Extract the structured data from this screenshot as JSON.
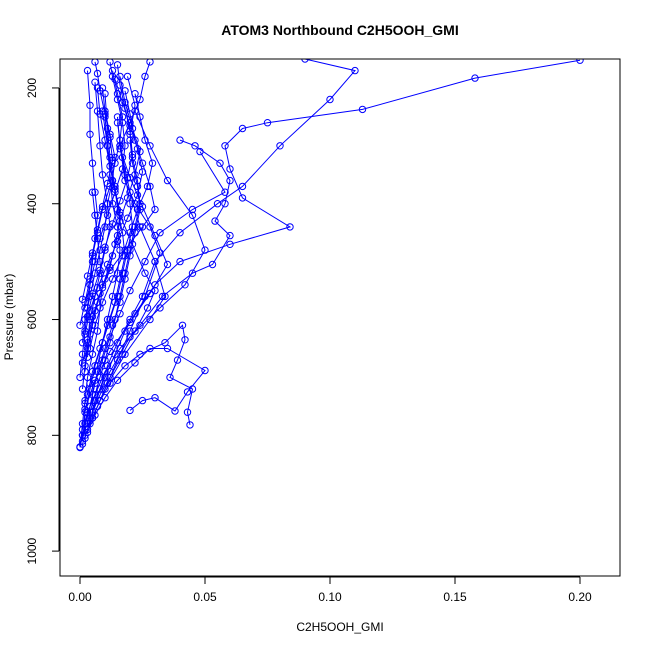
{
  "chart_data": {
    "type": "line",
    "title": "ATOM3 Northbound C2H5OOH_GMI",
    "xlabel": "C2H5OOH_GMI",
    "ylabel": "Pressure (mbar)",
    "xlim": [
      -0.008,
      0.216
    ],
    "ylim": [
      1043,
      150
    ],
    "y_reversed": true,
    "grid": false,
    "color": "#0000ff",
    "x_ticks": [
      0.0,
      0.05,
      0.1,
      0.15,
      0.2
    ],
    "x_tick_labels": [
      "0.00",
      "0.05",
      "0.10",
      "0.15",
      "0.20"
    ],
    "y_ticks": [
      200,
      400,
      600,
      800,
      1000
    ],
    "y_tick_labels": [
      "200",
      "400",
      "600",
      "800",
      "1000"
    ],
    "series": [
      {
        "x": [
          0.0,
          0.001,
          0.003,
          0.004,
          0.006,
          0.008,
          0.01,
          0.012,
          0.014,
          0.016,
          0.018,
          0.02,
          0.022,
          0.024,
          0.023,
          0.021,
          0.02,
          0.022,
          0.019
        ],
        "y": [
          821,
          800,
          780,
          760,
          730,
          700,
          670,
          640,
          600,
          560,
          520,
          480,
          440,
          400,
          360,
          320,
          280,
          230,
          180
        ]
      },
      {
        "x": [
          0.001,
          0.003,
          0.005,
          0.008,
          0.011,
          0.015,
          0.02,
          0.025,
          0.03,
          0.04,
          0.055,
          0.065,
          0.08,
          0.1,
          0.11,
          0.09
        ],
        "y": [
          815,
          790,
          760,
          720,
          680,
          640,
          600,
          560,
          500,
          450,
          400,
          370,
          300,
          220,
          170,
          150
        ]
      },
      {
        "x": [
          0.001,
          0.002,
          0.004,
          0.006,
          0.009,
          0.012,
          0.016,
          0.02,
          0.026,
          0.032,
          0.045,
          0.058,
          0.048
        ],
        "y": [
          810,
          780,
          750,
          710,
          670,
          630,
          590,
          550,
          500,
          450,
          410,
          380,
          310
        ]
      },
      {
        "x": [
          0.002,
          0.004,
          0.006,
          0.01,
          0.014,
          0.018,
          0.022,
          0.03,
          0.04,
          0.06,
          0.084,
          0.065,
          0.06,
          0.058,
          0.065,
          0.075,
          0.113,
          0.158,
          0.2
        ],
        "y": [
          805,
          775,
          740,
          700,
          660,
          620,
          590,
          540,
          500,
          470,
          440,
          390,
          340,
          300,
          270,
          260,
          237,
          183,
          152
        ]
      },
      {
        "x": [
          0.002,
          0.005,
          0.008,
          0.012,
          0.018,
          0.024,
          0.034,
          0.041,
          0.042,
          0.039,
          0.036,
          0.045,
          0.043,
          0.044
        ],
        "y": [
          800,
          770,
          740,
          710,
          680,
          660,
          640,
          610,
          635,
          670,
          700,
          720,
          760,
          782
        ]
      },
      {
        "x": [
          0.003,
          0.006,
          0.01,
          0.015,
          0.022,
          0.028,
          0.035,
          0.05,
          0.043,
          0.038,
          0.03,
          0.025,
          0.02
        ],
        "y": [
          795,
          765,
          735,
          705,
          675,
          650,
          650,
          688,
          725,
          758,
          735,
          740,
          757
        ]
      },
      {
        "x": [
          0.001,
          0.003,
          0.006,
          0.01,
          0.016,
          0.024,
          0.033,
          0.045,
          0.053,
          0.06,
          0.054,
          0.058,
          0.06,
          0.056,
          0.046,
          0.04
        ],
        "y": [
          790,
          760,
          730,
          690,
          650,
          610,
          560,
          520,
          505,
          455,
          430,
          400,
          360,
          330,
          300,
          290
        ]
      },
      {
        "x": [
          0.004,
          0.007,
          0.011,
          0.015,
          0.02,
          0.026,
          0.032,
          0.028,
          0.022,
          0.018,
          0.016,
          0.02,
          0.024,
          0.026,
          0.028
        ],
        "y": [
          780,
          750,
          710,
          670,
          620,
          560,
          485,
          440,
          400,
          360,
          300,
          260,
          220,
          180,
          155
        ]
      },
      {
        "x": [
          0.005,
          0.008,
          0.012,
          0.017,
          0.022,
          0.027,
          0.03,
          0.026,
          0.021,
          0.016,
          0.013,
          0.011,
          0.009
        ],
        "y": [
          760,
          730,
          700,
          660,
          620,
          580,
          550,
          520,
          470,
          420,
          360,
          300,
          240
        ]
      },
      {
        "x": [
          0.002,
          0.004,
          0.007,
          0.009,
          0.012,
          0.015,
          0.017,
          0.019,
          0.021,
          0.02,
          0.018,
          0.016,
          0.015
        ],
        "y": [
          745,
          710,
          680,
          640,
          600,
          560,
          520,
          480,
          440,
          400,
          350,
          300,
          250
        ]
      },
      {
        "x": [
          0.003,
          0.005,
          0.008,
          0.011,
          0.014,
          0.016,
          0.018,
          0.017,
          0.015,
          0.014,
          0.012,
          0.011,
          0.01
        ],
        "y": [
          730,
          690,
          650,
          610,
          570,
          530,
          490,
          450,
          410,
          370,
          320,
          270,
          210
        ]
      },
      {
        "x": [
          0.001,
          0.002,
          0.003,
          0.004,
          0.006,
          0.008,
          0.01,
          0.012,
          0.011,
          0.009,
          0.008,
          0.007,
          0.006
        ],
        "y": [
          720,
          680,
          640,
          600,
          560,
          520,
          480,
          440,
          400,
          350,
          300,
          240,
          190
        ]
      },
      {
        "x": [
          0.0,
          0.001,
          0.002,
          0.003,
          0.004,
          0.005,
          0.006,
          0.007,
          0.006,
          0.005,
          0.004,
          0.004,
          0.003
        ],
        "y": [
          700,
          660,
          620,
          580,
          540,
          500,
          460,
          420,
          380,
          330,
          280,
          230,
          170
        ]
      },
      {
        "x": [
          0.002,
          0.003,
          0.005,
          0.007,
          0.01,
          0.013,
          0.015,
          0.016,
          0.014,
          0.012,
          0.01,
          0.008,
          0.007
        ],
        "y": [
          690,
          650,
          610,
          570,
          530,
          490,
          455,
          415,
          375,
          335,
          290,
          245,
          200
        ]
      },
      {
        "x": [
          0.001,
          0.003,
          0.005,
          0.008,
          0.012,
          0.018,
          0.025,
          0.03,
          0.028,
          0.025,
          0.022,
          0.02,
          0.018
        ],
        "y": [
          675,
          635,
          595,
          555,
          515,
          480,
          440,
          410,
          370,
          330,
          290,
          245,
          205
        ]
      },
      {
        "x": [
          0.003,
          0.004,
          0.006,
          0.009,
          0.012,
          0.014,
          0.016,
          0.019,
          0.022,
          0.024,
          0.021,
          0.018,
          0.016
        ],
        "y": [
          665,
          625,
          585,
          545,
          510,
          470,
          430,
          390,
          350,
          310,
          270,
          225,
          180
        ]
      },
      {
        "x": [
          0.004,
          0.006,
          0.009,
          0.013,
          0.017,
          0.02,
          0.023,
          0.027,
          0.029,
          0.026,
          0.024,
          0.022
        ],
        "y": [
          650,
          610,
          570,
          530,
          490,
          450,
          410,
          370,
          330,
          290,
          250,
          210
        ]
      },
      {
        "x": [
          0.001,
          0.002,
          0.004,
          0.006,
          0.008,
          0.01,
          0.011,
          0.013,
          0.014,
          0.012,
          0.01,
          0.009
        ],
        "y": [
          640,
          600,
          560,
          520,
          480,
          440,
          400,
          360,
          320,
          280,
          240,
          200
        ]
      },
      {
        "x": [
          0.002,
          0.004,
          0.007,
          0.011,
          0.015,
          0.019,
          0.023,
          0.025,
          0.023,
          0.02,
          0.017,
          0.014
        ],
        "y": [
          625,
          585,
          545,
          505,
          465,
          425,
          385,
          345,
          305,
          265,
          225,
          185
        ]
      },
      {
        "x": [
          0.0,
          0.002,
          0.004,
          0.005,
          0.007,
          0.009,
          0.012,
          0.014,
          0.016,
          0.017,
          0.015,
          0.013
        ],
        "y": [
          610,
          570,
          530,
          490,
          450,
          410,
          370,
          330,
          290,
          250,
          210,
          170
        ]
      },
      {
        "x": [
          0.003,
          0.005,
          0.008,
          0.01,
          0.013,
          0.016,
          0.019,
          0.021,
          0.02,
          0.018,
          0.016,
          0.015
        ],
        "y": [
          595,
          555,
          515,
          475,
          435,
          395,
          355,
          315,
          275,
          235,
          195,
          160
        ]
      },
      {
        "x": [
          0.002,
          0.004,
          0.006,
          0.008,
          0.011,
          0.014,
          0.017,
          0.018,
          0.017,
          0.015,
          0.013,
          0.012
        ],
        "y": [
          580,
          540,
          500,
          460,
          420,
          380,
          340,
          300,
          260,
          220,
          180,
          155
        ]
      },
      {
        "x": [
          0.001,
          0.003,
          0.005,
          0.007,
          0.009,
          0.011,
          0.013,
          0.012,
          0.01,
          0.008,
          0.007,
          0.006
        ],
        "y": [
          565,
          525,
          485,
          445,
          405,
          365,
          325,
          285,
          245,
          205,
          175,
          155
        ]
      },
      {
        "x": [
          0.005,
          0.01,
          0.018,
          0.028,
          0.034,
          0.03,
          0.024,
          0.02,
          0.017,
          0.015
        ],
        "y": [
          770,
          720,
          660,
          600,
          560,
          500,
          440,
          380,
          320,
          260
        ]
      },
      {
        "x": [
          0.006,
          0.012,
          0.02,
          0.032,
          0.042,
          0.05,
          0.045,
          0.035,
          0.028,
          0.022
        ],
        "y": [
          740,
          690,
          630,
          580,
          540,
          480,
          420,
          360,
          300,
          240
        ]
      },
      {
        "x": [
          0.002,
          0.006,
          0.012,
          0.02,
          0.028,
          0.035,
          0.03,
          0.025,
          0.02,
          0.016
        ],
        "y": [
          755,
          705,
          655,
          605,
          555,
          505,
          455,
          405,
          355,
          305
        ]
      },
      {
        "x": [
          0.001,
          0.002,
          0.004,
          0.006,
          0.009,
          0.011,
          0.013,
          0.015,
          0.016,
          0.015,
          0.013,
          0.012,
          0.011,
          0.01
        ],
        "y": [
          800,
          760,
          720,
          680,
          640,
          600,
          560,
          520,
          480,
          440,
          400,
          350,
          300,
          250
        ]
      },
      {
        "x": [
          0.003,
          0.005,
          0.007,
          0.01,
          0.013,
          0.016,
          0.018,
          0.02,
          0.022,
          0.024,
          0.023,
          0.021,
          0.02
        ],
        "y": [
          770,
          730,
          690,
          650,
          610,
          570,
          530,
          490,
          450,
          410,
          370,
          330,
          290
        ]
      },
      {
        "x": [
          0.0,
          0.001,
          0.002,
          0.003,
          0.005,
          0.007,
          0.008,
          0.009,
          0.008,
          0.007,
          0.006,
          0.005
        ],
        "y": [
          820,
          780,
          740,
          700,
          660,
          620,
          580,
          540,
          500,
          460,
          420,
          380
        ]
      }
    ]
  }
}
